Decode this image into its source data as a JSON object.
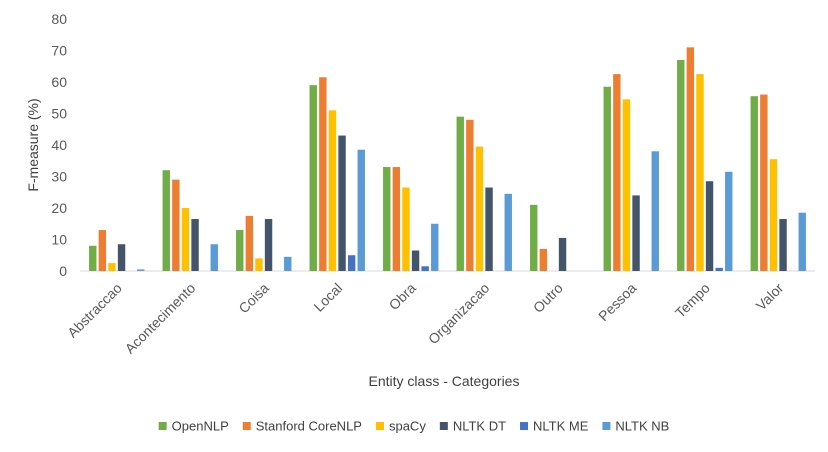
{
  "chart_data": {
    "type": "bar",
    "title": "",
    "xlabel": "Entity class - Categories",
    "ylabel": "F-measure (%)",
    "ylim": [
      0,
      80
    ],
    "ytick_step": 10,
    "grid": false,
    "legend_position": "bottom",
    "categories": [
      "Abstraccao",
      "Acontecimento",
      "Coisa",
      "Local",
      "Obra",
      "Organizacao",
      "Outro",
      "Pessoa",
      "Tempo",
      "Valor"
    ],
    "series": [
      {
        "name": "OpenNLP",
        "color": "#70ad47",
        "values": [
          8,
          32,
          13,
          59,
          33,
          49,
          21,
          58.5,
          67,
          55.5
        ]
      },
      {
        "name": "Stanford CoreNLP",
        "color": "#ed7d31",
        "values": [
          13,
          29,
          17.5,
          61.5,
          33,
          48,
          7,
          62.5,
          71,
          56
        ]
      },
      {
        "name": "spaCy",
        "color": "#ffc000",
        "values": [
          2.5,
          20,
          4,
          51,
          26.5,
          39.5,
          0,
          54.5,
          62.5,
          35.5
        ]
      },
      {
        "name": "NLTK DT",
        "color": "#44546a",
        "values": [
          8.5,
          16.5,
          16.5,
          43,
          6.5,
          26.5,
          10.5,
          24,
          28.5,
          16.5
        ]
      },
      {
        "name": "NLTK ME",
        "color": "#4472c4",
        "values": [
          0,
          0,
          0,
          5,
          1.5,
          0,
          0,
          0,
          1,
          0
        ]
      },
      {
        "name": "NLTK NB",
        "color": "#5b9bd5",
        "values": [
          0.5,
          8.5,
          4.5,
          38.5,
          15,
          24.5,
          0,
          38,
          31.5,
          18.5
        ]
      }
    ]
  }
}
